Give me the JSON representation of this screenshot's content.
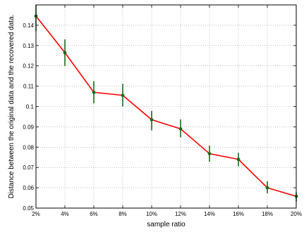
{
  "chart_data": {
    "type": "line",
    "xlabel": "sample ratio",
    "ylabel": "Distance between the original data and the recovered data.",
    "categories": [
      "2%",
      "4%",
      "6%",
      "8%",
      "10%",
      "12%",
      "14%",
      "16%",
      "18%",
      "20%"
    ],
    "ylim": [
      0.05,
      0.15
    ],
    "yticks": [
      "0.05",
      "0.06",
      "0.07",
      "0.08",
      "0.09",
      "0.1",
      "0.11",
      "0.12",
      "0.13",
      "0.14"
    ],
    "grid": true,
    "series": [
      {
        "values": [
          0.1445,
          0.1265,
          0.107,
          0.1055,
          0.0935,
          0.089,
          0.0768,
          0.074,
          0.06,
          0.0558
        ],
        "error_low": [
          0.137,
          0.12,
          0.1015,
          0.1,
          0.0882,
          0.0848,
          0.0728,
          0.0705,
          0.0572,
          0.0532
        ],
        "error_high": [
          0.1515,
          0.133,
          0.1125,
          0.1112,
          0.0978,
          0.0936,
          0.0808,
          0.0772,
          0.0632,
          0.0578
        ]
      }
    ],
    "colors": {
      "line": "#ff0000",
      "errorbar": "#1a6b1a",
      "marker": "#1a6b1a",
      "grid": "#9a9a9a"
    }
  }
}
